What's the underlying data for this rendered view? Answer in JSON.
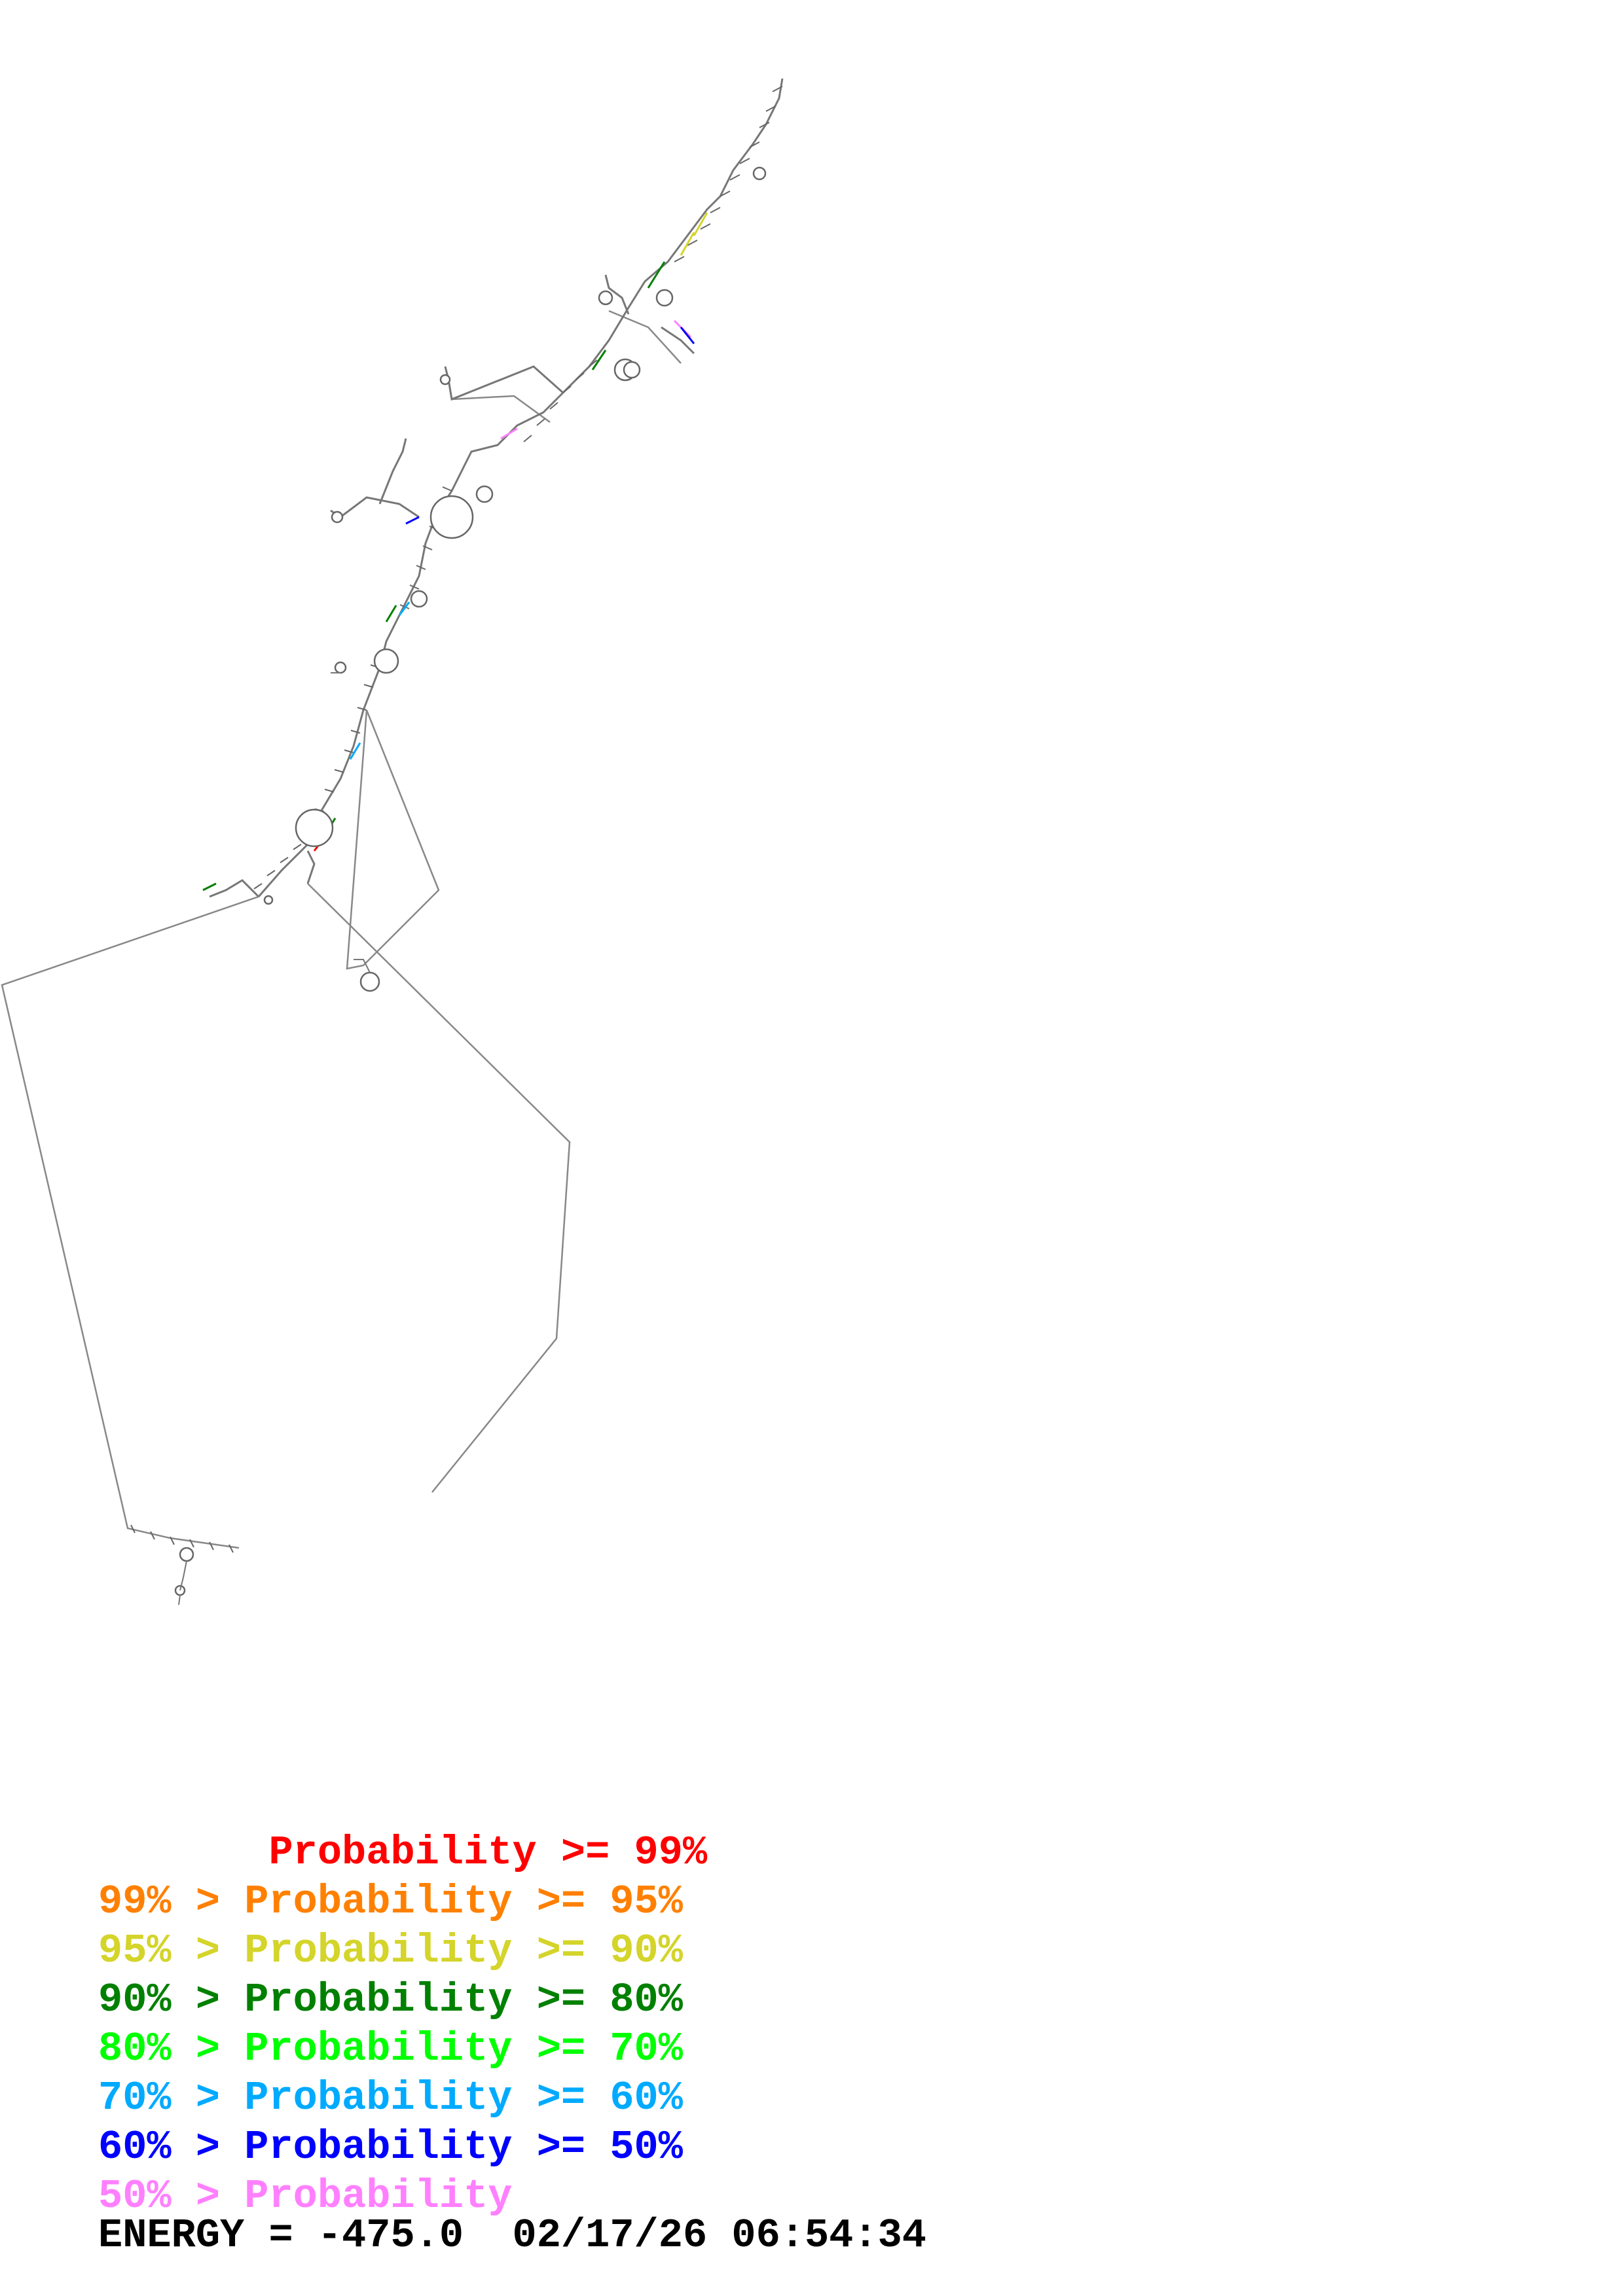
{
  "legend": [
    {
      "text": "       Probability >= 99%",
      "color": "#ff0000"
    },
    {
      "text": "99% > Probability >= 95%",
      "color": "#ff8000"
    },
    {
      "text": "95% > Probability >= 90%",
      "color": "#d4d42a"
    },
    {
      "text": "90% > Probability >= 80%",
      "color": "#008000"
    },
    {
      "text": "80% > Probability >= 70%",
      "color": "#00ff00"
    },
    {
      "text": "70% > Probability >= 60%",
      "color": "#00aaff"
    },
    {
      "text": "60% > Probability >= 50%",
      "color": "#0000ff"
    },
    {
      "text": "50% > Probability",
      "color": "#ff80ff"
    }
  ],
  "energy": {
    "text": "ENERGY = -475.0  02/17/26 06:54:34"
  },
  "colors": {
    "backbone": "#888888",
    "base": "#555555"
  }
}
